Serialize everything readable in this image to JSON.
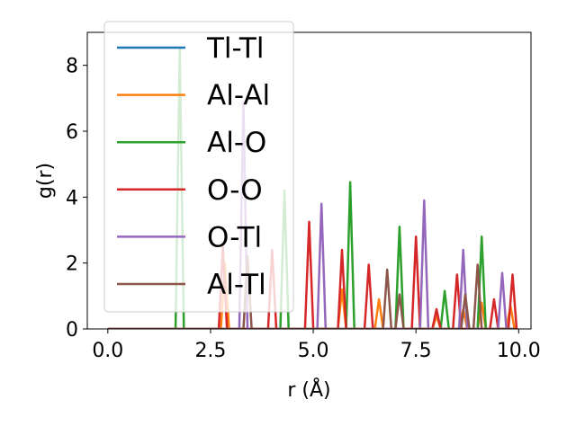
{
  "chart_data": {
    "type": "line",
    "xlabel": "r (Å)",
    "ylabel": "g(r)",
    "xlim": [
      -0.5,
      10.3
    ],
    "ylim": [
      0,
      9
    ],
    "xticks": [
      0.0,
      2.5,
      5.0,
      7.5,
      10.0
    ],
    "xtick_labels": [
      "0.0",
      "2.5",
      "5.0",
      "7.5",
      "10.0"
    ],
    "yticks": [
      0,
      2,
      4,
      6,
      8
    ],
    "ytick_labels": [
      "0",
      "2",
      "4",
      "6",
      "8"
    ],
    "grid": false,
    "legend_position": "top-left",
    "series": [
      {
        "name": "Tl-Tl",
        "color": "#1f77b4",
        "peaks": []
      },
      {
        "name": "Al-Al",
        "color": "#ff7f0e",
        "peaks": [
          [
            2.85,
            2.0
          ],
          [
            5.7,
            1.2
          ],
          [
            6.6,
            0.9
          ],
          [
            8.0,
            0.4
          ],
          [
            8.65,
            0.6
          ],
          [
            9.1,
            0.8
          ],
          [
            9.8,
            0.7
          ]
        ]
      },
      {
        "name": "Al-O",
        "color": "#2ca02c",
        "peaks": [
          [
            1.75,
            8.5
          ],
          [
            4.3,
            4.2
          ],
          [
            5.9,
            4.45
          ],
          [
            7.1,
            3.1
          ],
          [
            8.2,
            1.15
          ],
          [
            9.1,
            2.8
          ]
        ]
      },
      {
        "name": "O-O",
        "color": "#d62728",
        "peaks": [
          [
            2.8,
            2.5
          ],
          [
            4.0,
            2.4
          ],
          [
            4.9,
            3.25
          ],
          [
            5.7,
            2.4
          ],
          [
            6.35,
            1.95
          ],
          [
            7.5,
            2.8
          ],
          [
            8.0,
            0.6
          ],
          [
            8.5,
            1.65
          ],
          [
            9.4,
            0.9
          ],
          [
            9.85,
            1.65
          ]
        ]
      },
      {
        "name": "O-Tl",
        "color": "#9467bd",
        "peaks": [
          [
            3.3,
            6.9
          ],
          [
            5.2,
            3.8
          ],
          [
            7.7,
            3.9
          ],
          [
            8.65,
            2.4
          ],
          [
            9.6,
            1.7
          ]
        ]
      },
      {
        "name": "Al-Tl",
        "color": "#8c564b",
        "peaks": [
          [
            3.4,
            2.2
          ],
          [
            6.8,
            1.8
          ],
          [
            7.1,
            1.05
          ],
          [
            8.7,
            1.05
          ],
          [
            9.0,
            1.95
          ]
        ]
      }
    ],
    "peak_halfwidth": 0.1,
    "x_range": [
      0.0,
      9.9
    ]
  }
}
